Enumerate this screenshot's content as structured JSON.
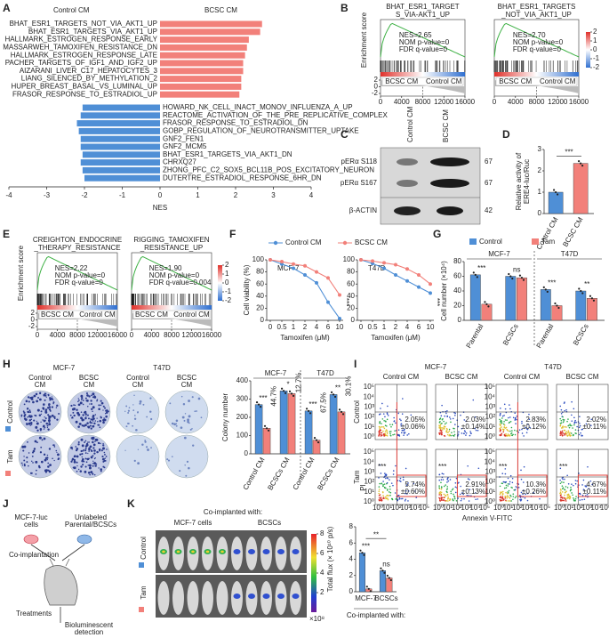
{
  "A": {
    "letter": "A",
    "legend": [
      {
        "name": "Control CM",
        "color": "#4f8fd6"
      },
      {
        "name": "BCSC CM",
        "color": "#f2807a"
      }
    ],
    "categories": [
      "BHAT_ESR1_TARGETS_NOT_VIA_AKT1_UP",
      "BHAT_ESR1_TARGETS_VIA_AKT1_UP",
      "HALLMARK_ESTROGEN_RESPONSE_EARLY",
      "MASSARWEH_TAMOXIFEN_RESISTANCE_DN",
      "HALLMARK_ESTROGEN_RESPONSE_LATE",
      "PACHER_TARGETS_OF_IGF1_AND_IGF2_UP",
      "AIZARANI_LIVER_C17_HEPATOCYTES_3",
      "LIANG_SILENCED_BY_METHYLATION_2",
      "HUPER_BREAST_BASAL_VS_LUMINAL_UP",
      "FRASOR_RESPONSE_TO_ESTRADIOL_UP",
      "HOWARD_NK_CELL_INACT_MONOV_INFLUENZA_A_UP",
      "REACTOME_ACTIVATION_OF_THE_PRE_REPLICATIVE_COMPLEX",
      "FRASOR_RESPONSE_TO_ESTRADIOL_DN",
      "GOBP_REGULATION_OF_NEUROTRANSMITTER_UPTAKE",
      "GNF2_FEN1",
      "GNF2_MCM5",
      "BHAT_ESR1_TARGETS_VIA_AKT1_DN",
      "CHRXQ27",
      "ZHONG_PFC_C2_SOX5_BCL11B_POS_EXCITATORY_NEURON",
      "DUTERTRE_ESTRADIOL_RESPONSE_6HR_DN"
    ],
    "values": [
      2.7,
      2.65,
      2.35,
      2.3,
      2.25,
      2.2,
      2.2,
      2.15,
      2.15,
      2.1,
      -2.05,
      -2.1,
      -2.2,
      -2.15,
      -2.1,
      -2.1,
      -2.05,
      -2.1,
      -2.05,
      -2.0
    ],
    "xlabel": "NES",
    "xlim": [
      -4,
      4
    ],
    "xticks": [
      -4,
      -3,
      -2,
      -1,
      0,
      1,
      2,
      3,
      4
    ]
  },
  "B": {
    "letter": "B",
    "ylabel": "Enrichment score",
    "plots": [
      {
        "title": [
          "BHAT_ESR1_TARGET",
          "S_VIA-AKT1_UP"
        ],
        "stats": [
          "NES=2.65",
          "NOM p-value=0",
          "FDR q-value=0"
        ]
      },
      {
        "title": [
          "BHAT_ESR1_TARGETS",
          "_NOT_VIA_AKT1_UP"
        ],
        "stats": [
          "NES=2.70",
          "NOM p-value=0",
          "FDR q-value=0"
        ]
      }
    ],
    "groups": [
      "BCSC CM",
      "Control CM"
    ],
    "xticks": [
      0,
      4000,
      8000,
      12000,
      16000
    ],
    "metric_ticks": [
      2,
      0,
      -2
    ],
    "colorbar_ticks": [
      2,
      1,
      0,
      -1,
      -2
    ]
  },
  "C": {
    "letter": "C",
    "columns": [
      "Control CM",
      "BCSC CM"
    ],
    "rows": [
      "pERα S118",
      "pERα S167",
      "β-ACTIN"
    ],
    "sizes": [
      "67",
      "67",
      "42"
    ]
  },
  "D": {
    "letter": "D",
    "ylabel": [
      "Relative activity of",
      "ERE4-luc/Ruc"
    ],
    "categories": [
      "Control CM",
      "BCSC CM"
    ],
    "values": [
      1,
      2.35
    ],
    "colors": [
      "#4f8fd6",
      "#f2807a"
    ],
    "ylim": [
      0,
      3
    ],
    "yticks": [
      0,
      1,
      2,
      3
    ],
    "cross_sig": "***"
  },
  "E": {
    "letter": "E",
    "ylabel": "Enrichment score",
    "plots": [
      {
        "title": [
          "CREIGHTON_ENDOCRINE",
          "_THERAPY_RESISTANCE"
        ],
        "stats": [
          "NES=2.22",
          "NOM p-value=0",
          "FDR q-value=0"
        ]
      },
      {
        "title": [
          "RIGGING_TAMOXIFEN",
          "_RESISTANCE_UP"
        ],
        "stats": [
          "NES=1.90",
          "NOM p-value=0",
          "FDR q-value=0.004"
        ]
      }
    ],
    "groups": [
      "BCSC CM",
      "Control CM"
    ],
    "xticks": [
      0,
      4000,
      8000,
      12000,
      16000
    ],
    "metric_ticks": [
      2,
      0,
      -2
    ],
    "colorbar_ticks": [
      2,
      1,
      0,
      -1,
      -2
    ]
  },
  "F": {
    "letter": "F",
    "ylabel": "Cell viability (%)",
    "xlabel": "Tamoxifen (μM)",
    "categories": [
      "0",
      "0.5",
      "1",
      "2",
      "4",
      "6",
      "10"
    ],
    "ylim": [
      0,
      100
    ],
    "yticks": [
      0,
      20,
      40,
      60,
      80,
      100
    ],
    "panels": [
      {
        "title": "MCF-7",
        "sig": "***",
        "series": [
          {
            "name": "Control CM",
            "color": "#4f8fd6",
            "values": [
              100,
              93,
              86,
              75,
              62,
              30,
              3
            ]
          },
          {
            "name": "BCSC CM",
            "color": "#f2807a",
            "values": [
              100,
              97,
              93,
              90,
              80,
              70,
              42
            ]
          }
        ]
      },
      {
        "title": "T47D",
        "sig": "***",
        "series": [
          {
            "color": "#4f8fd6",
            "values": [
              100,
              94,
              86,
              75,
              65,
              55,
              45
            ]
          },
          {
            "color": "#f2807a",
            "values": [
              100,
              98,
              95,
              92,
              85,
              75,
              60
            ]
          }
        ]
      }
    ]
  },
  "G": {
    "letter": "G",
    "ylabel": "Cell number (×10⁴)",
    "groups": [
      "MCF-7",
      "T47D"
    ],
    "categories": [
      "Parental",
      "BCSCs",
      "Parental",
      "BCSCs"
    ],
    "series": [
      {
        "name": "Control",
        "color": "#4f8fd6",
        "values": [
          62,
          60,
          42,
          40
        ]
      },
      {
        "name": "Tam",
        "color": "#f2807a",
        "values": [
          22,
          58,
          20,
          30
        ]
      }
    ],
    "ylim": [
      0,
      80
    ],
    "yticks": [
      0,
      20,
      40,
      60,
      80
    ],
    "sig": [
      "***",
      "ns",
      "***",
      "**"
    ]
  },
  "H": {
    "letter": "H",
    "cells": [
      "MCF-7",
      "T47D"
    ],
    "conditions": [
      [
        "Control",
        "CM"
      ],
      [
        "BCSC",
        "CM"
      ],
      [
        "Control",
        "CM"
      ],
      [
        "BCSC",
        "CM"
      ]
    ],
    "chart": {
      "ylabel": "Colony number",
      "groups": [
        "MCF-7",
        "T47D"
      ],
      "categories": [
        "Control CM",
        "BCSCs CM",
        "Control CM",
        "BCSCs CM"
      ],
      "series": [
        {
          "name": "Control",
          "color": "#4f8fd6",
          "values": [
            270,
            345,
            235,
            325
          ]
        },
        {
          "name": "Tam",
          "color": "#f2807a",
          "values": [
            140,
            330,
            75,
            230
          ]
        }
      ],
      "ylim": [
        0,
        400
      ],
      "yticks": [
        0,
        100,
        200,
        300,
        400
      ],
      "sig": [
        "***",
        "*",
        "***",
        "**"
      ],
      "pct": [
        "44.7%",
        "12.7%",
        "67.5%",
        "30.1%"
      ]
    }
  },
  "I": {
    "letter": "I",
    "cells": [
      "MCF-7",
      "T47D"
    ],
    "conditions": [
      "Control CM",
      "BCSC CM",
      "Control CM",
      "BCSC CM"
    ],
    "rows": [
      "Control",
      "Tam"
    ],
    "quadrant_labels": [
      [
        [
          "2.05%",
          "±0.06%"
        ],
        [
          "2.03%",
          "±0.14%"
        ],
        [
          "2.83%",
          "±0.12%"
        ],
        [
          "2.02%",
          "±0.11%"
        ]
      ],
      [
        [
          "5.74%",
          "±0.60%"
        ],
        [
          "2.91%",
          "±0.13%"
        ],
        [
          "10.3%",
          "±0.26%"
        ],
        [
          "4.67%",
          "±0.11%"
        ]
      ]
    ],
    "sig": "***",
    "ylabel": "PI",
    "xlabel": "Annexin V-FITC",
    "ticks": [
      "10⁰",
      "10¹",
      "10²",
      "10³",
      "10⁴",
      "10⁵"
    ]
  },
  "J": {
    "letter": "J",
    "cells_a": [
      "MCF-7-luc",
      "cells"
    ],
    "cells_b": [
      "Unlabeled",
      "Parental/BCSCs"
    ],
    "step1": "Co-implantation",
    "step2": "Treatments",
    "step3": [
      "Bioluminescent",
      "detection"
    ]
  },
  "K": {
    "letter": "K",
    "header": "Co-implanted with:",
    "columns": [
      "MCF-7 cells",
      "BCSCs"
    ],
    "colorbar_ticks": [
      8,
      6,
      4,
      2
    ],
    "colorbar_unit": "×10⁸",
    "chart": {
      "ylabel": "Total flux (× 10¹⁰ p/s)",
      "xlabel": "Co-implanted with:",
      "categories": [
        "MCF-7",
        "BCSCs"
      ],
      "series": [
        {
          "name": "Control",
          "color": "#4f8fd6",
          "values": [
            4.8,
            2.6
          ]
        },
        {
          "name": "Tam",
          "color": "#f2807a",
          "values": [
            0.35,
            1.7
          ]
        }
      ],
      "ylim": [
        0,
        8
      ],
      "yticks": [
        0,
        2,
        4,
        6,
        8
      ],
      "sig": [
        "***",
        "ns"
      ],
      "cross_sig": "**"
    }
  }
}
